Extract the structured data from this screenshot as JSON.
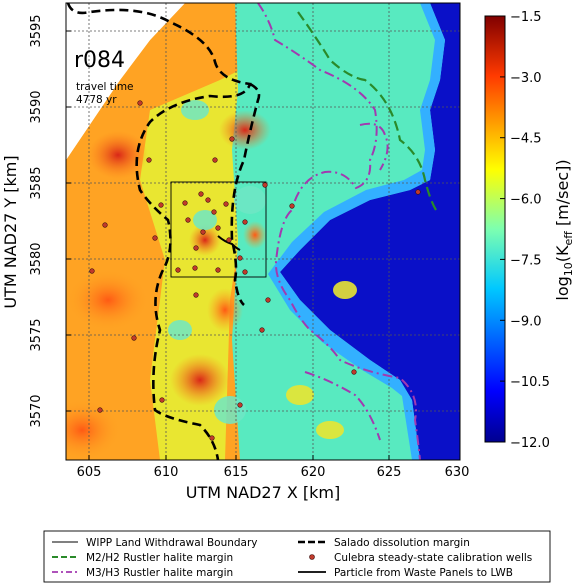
{
  "panel": {
    "title": "r084",
    "line1": "travel time",
    "line2": "4778 yr"
  },
  "axes": {
    "xlabel": "UTM NAD27 X [km]",
    "ylabel": "UTM NAD27 Y [km]",
    "xlim": [
      601.5,
      630
    ],
    "ylim": [
      3566.5,
      3597.5
    ],
    "xticks": [
      "605",
      "610",
      "615",
      "620",
      "625",
      "630"
    ],
    "yticks": [
      "3570",
      "3575",
      "3580",
      "3585",
      "3590",
      "3595"
    ]
  },
  "colorbar": {
    "label_prefix": "log",
    "label_sub": "10",
    "label_mid": "(K",
    "label_msub": "eff",
    "label_suffix": " [m/sec])",
    "ticks": [
      "−1.5",
      "−3.0",
      "−4.5",
      "−6.0",
      "−7.5",
      "−9.0",
      "−10.5",
      "−12.0"
    ],
    "range": [
      -12.0,
      -1.5
    ]
  },
  "legend": {
    "wipp": "WIPP Land Withdrawal Boundary",
    "m2h2": "M2/H2 Rustler halite margin",
    "m3h3": "M3/H3 Rustler halite margin",
    "salado": "Salado dissolution margin",
    "wells": "Culebra steady-state calibration wells",
    "particle": "Particle from Waste Panels to LWB"
  },
  "colors": {
    "high": "#e0301e",
    "low": "#00008f",
    "m2h2": "#2a8a2a",
    "m3h3": "#a23ab0",
    "well": "#c03a2b"
  }
}
